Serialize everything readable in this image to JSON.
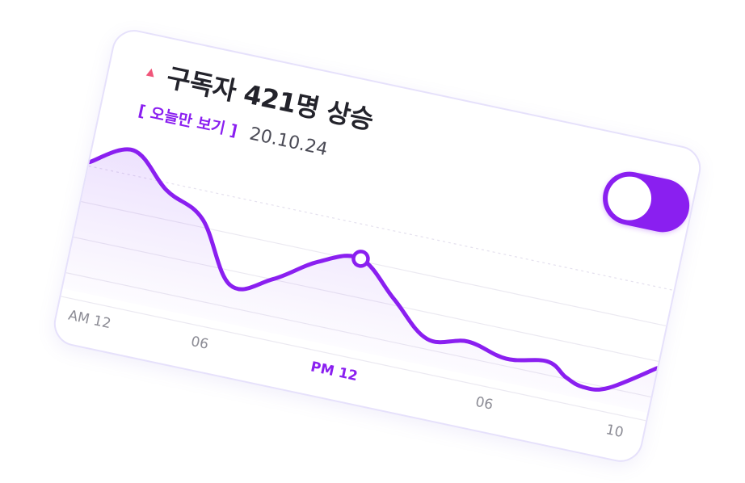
{
  "header": {
    "trend_icon": "triangle-up-icon",
    "title": "구독자 421명 상승",
    "today_link": "[ 오늘만 보기 ]",
    "date": "20.10.24"
  },
  "toggle": {
    "state": "on",
    "color": "#8a1ff0"
  },
  "colors": {
    "accent": "#8a1ff0",
    "trend_up": "#f0567a",
    "card_border": "#e6e1fb"
  },
  "chart_data": {
    "type": "area",
    "x_ticks": [
      "AM 12",
      "06",
      "PM 12",
      "06",
      "10"
    ],
    "highlighted_tick": "PM 12",
    "grid": true,
    "x": [
      0,
      1.5,
      3,
      4.5,
      6,
      7.5,
      9,
      10.5,
      12,
      13.5,
      15,
      16.5,
      18,
      18.8,
      19.5,
      20.4,
      22
    ],
    "values": [
      78,
      92,
      70,
      56,
      16,
      26,
      44,
      52,
      30,
      8,
      12,
      6,
      10,
      2,
      -2,
      1,
      21
    ],
    "ylim": [
      -10,
      100
    ],
    "highlight_point": {
      "x": 10.5,
      "y": 52
    }
  }
}
